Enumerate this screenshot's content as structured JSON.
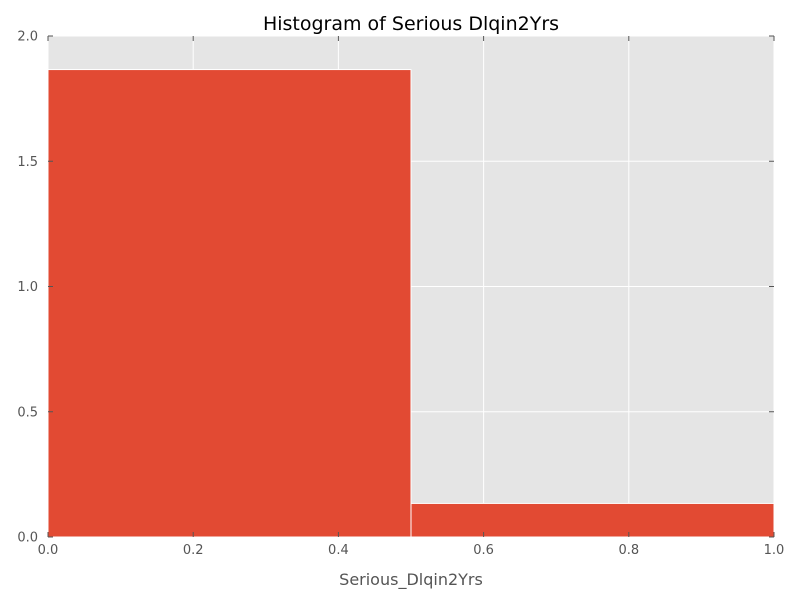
{
  "chart_data": {
    "type": "bar",
    "title": "Histogram of Serious Dlqin2Yrs",
    "xlabel": "Serious_Dlqin2Yrs",
    "ylabel": "",
    "xlim": [
      0.0,
      1.0
    ],
    "ylim": [
      0.0,
      2.0
    ],
    "xticks": [
      "0.0",
      "0.2",
      "0.4",
      "0.6",
      "0.8",
      "1.0"
    ],
    "yticks": [
      "0.0",
      "0.5",
      "1.0",
      "1.5",
      "2.0"
    ],
    "bins": [
      {
        "x_start": 0.0,
        "x_end": 0.5,
        "value": 1.866
      },
      {
        "x_start": 0.5,
        "x_end": 1.0,
        "value": 0.134
      }
    ],
    "grid": true,
    "colors": {
      "bar": "#E24A33",
      "plot_background": "#E5E5E5"
    }
  }
}
